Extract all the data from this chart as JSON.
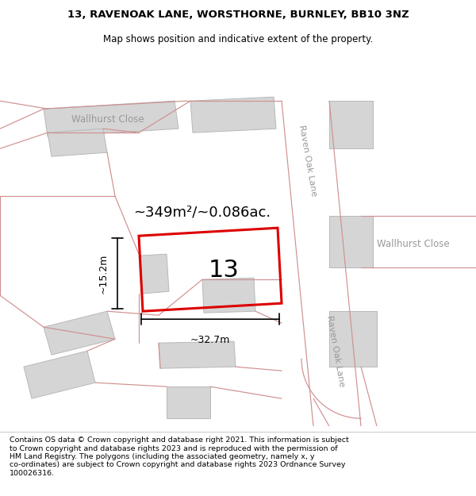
{
  "title": "13, RAVENOAK LANE, WORSTHORNE, BURNLEY, BB10 3NZ",
  "subtitle": "Map shows position and indicative extent of the property.",
  "footer": "Contains OS data © Crown copyright and database right 2021. This information is subject\nto Crown copyright and database rights 2023 and is reproduced with the permission of\nHM Land Registry. The polygons (including the associated geometry, namely x, y\nco-ordinates) are subject to Crown copyright and database rights 2023 Ordnance Survey\n100026316.",
  "bg_color": "#f7f2f2",
  "map_bg": "#ffffff",
  "plot_color": "#dd0000",
  "building_fill": "#d5d5d5",
  "building_edge": "#b8b8b8",
  "road_line_color": "#d09090",
  "label_color": "#999999",
  "area_label": "~349m²/~0.086ac.",
  "number_label": "13",
  "dim_width": "~32.7m",
  "dim_height": "~15.2m",
  "title_fontsize": 9.5,
  "subtitle_fontsize": 8.5,
  "footer_fontsize": 6.8
}
